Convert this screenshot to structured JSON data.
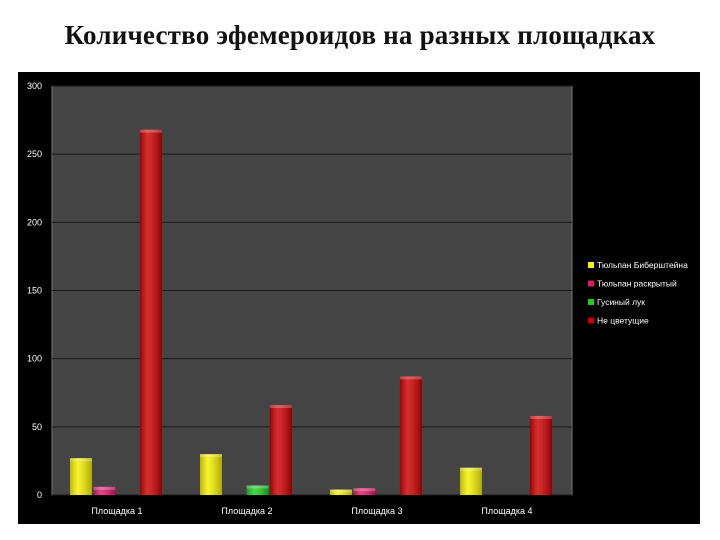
{
  "page": {
    "title": "Количество эфемероидов на разных площадках"
  },
  "chart_data": {
    "type": "bar",
    "categories": [
      "Площадка 1",
      "Площадка 2",
      "Площадка 3",
      "Площадка 4"
    ],
    "series": [
      {
        "name": "Тюльпан Биберштейна",
        "color": "#f5f000",
        "values": [
          27,
          30,
          4,
          20
        ]
      },
      {
        "name": "Тюльпан раскрытый",
        "color": "#e0186a",
        "values": [
          6,
          0,
          5,
          0
        ]
      },
      {
        "name": "Гусиный лук",
        "color": "#22cc22",
        "values": [
          0,
          7,
          0,
          0
        ]
      },
      {
        "name": "Не цветущие",
        "color": "#cc0000",
        "values": [
          268,
          66,
          87,
          58
        ]
      }
    ],
    "ylim": [
      0,
      300
    ],
    "yticks": [
      0,
      50,
      100,
      150,
      200,
      250,
      300
    ],
    "grid": true,
    "legend_position": "right",
    "plot_background": "#444444",
    "chart_background": "#000000"
  }
}
